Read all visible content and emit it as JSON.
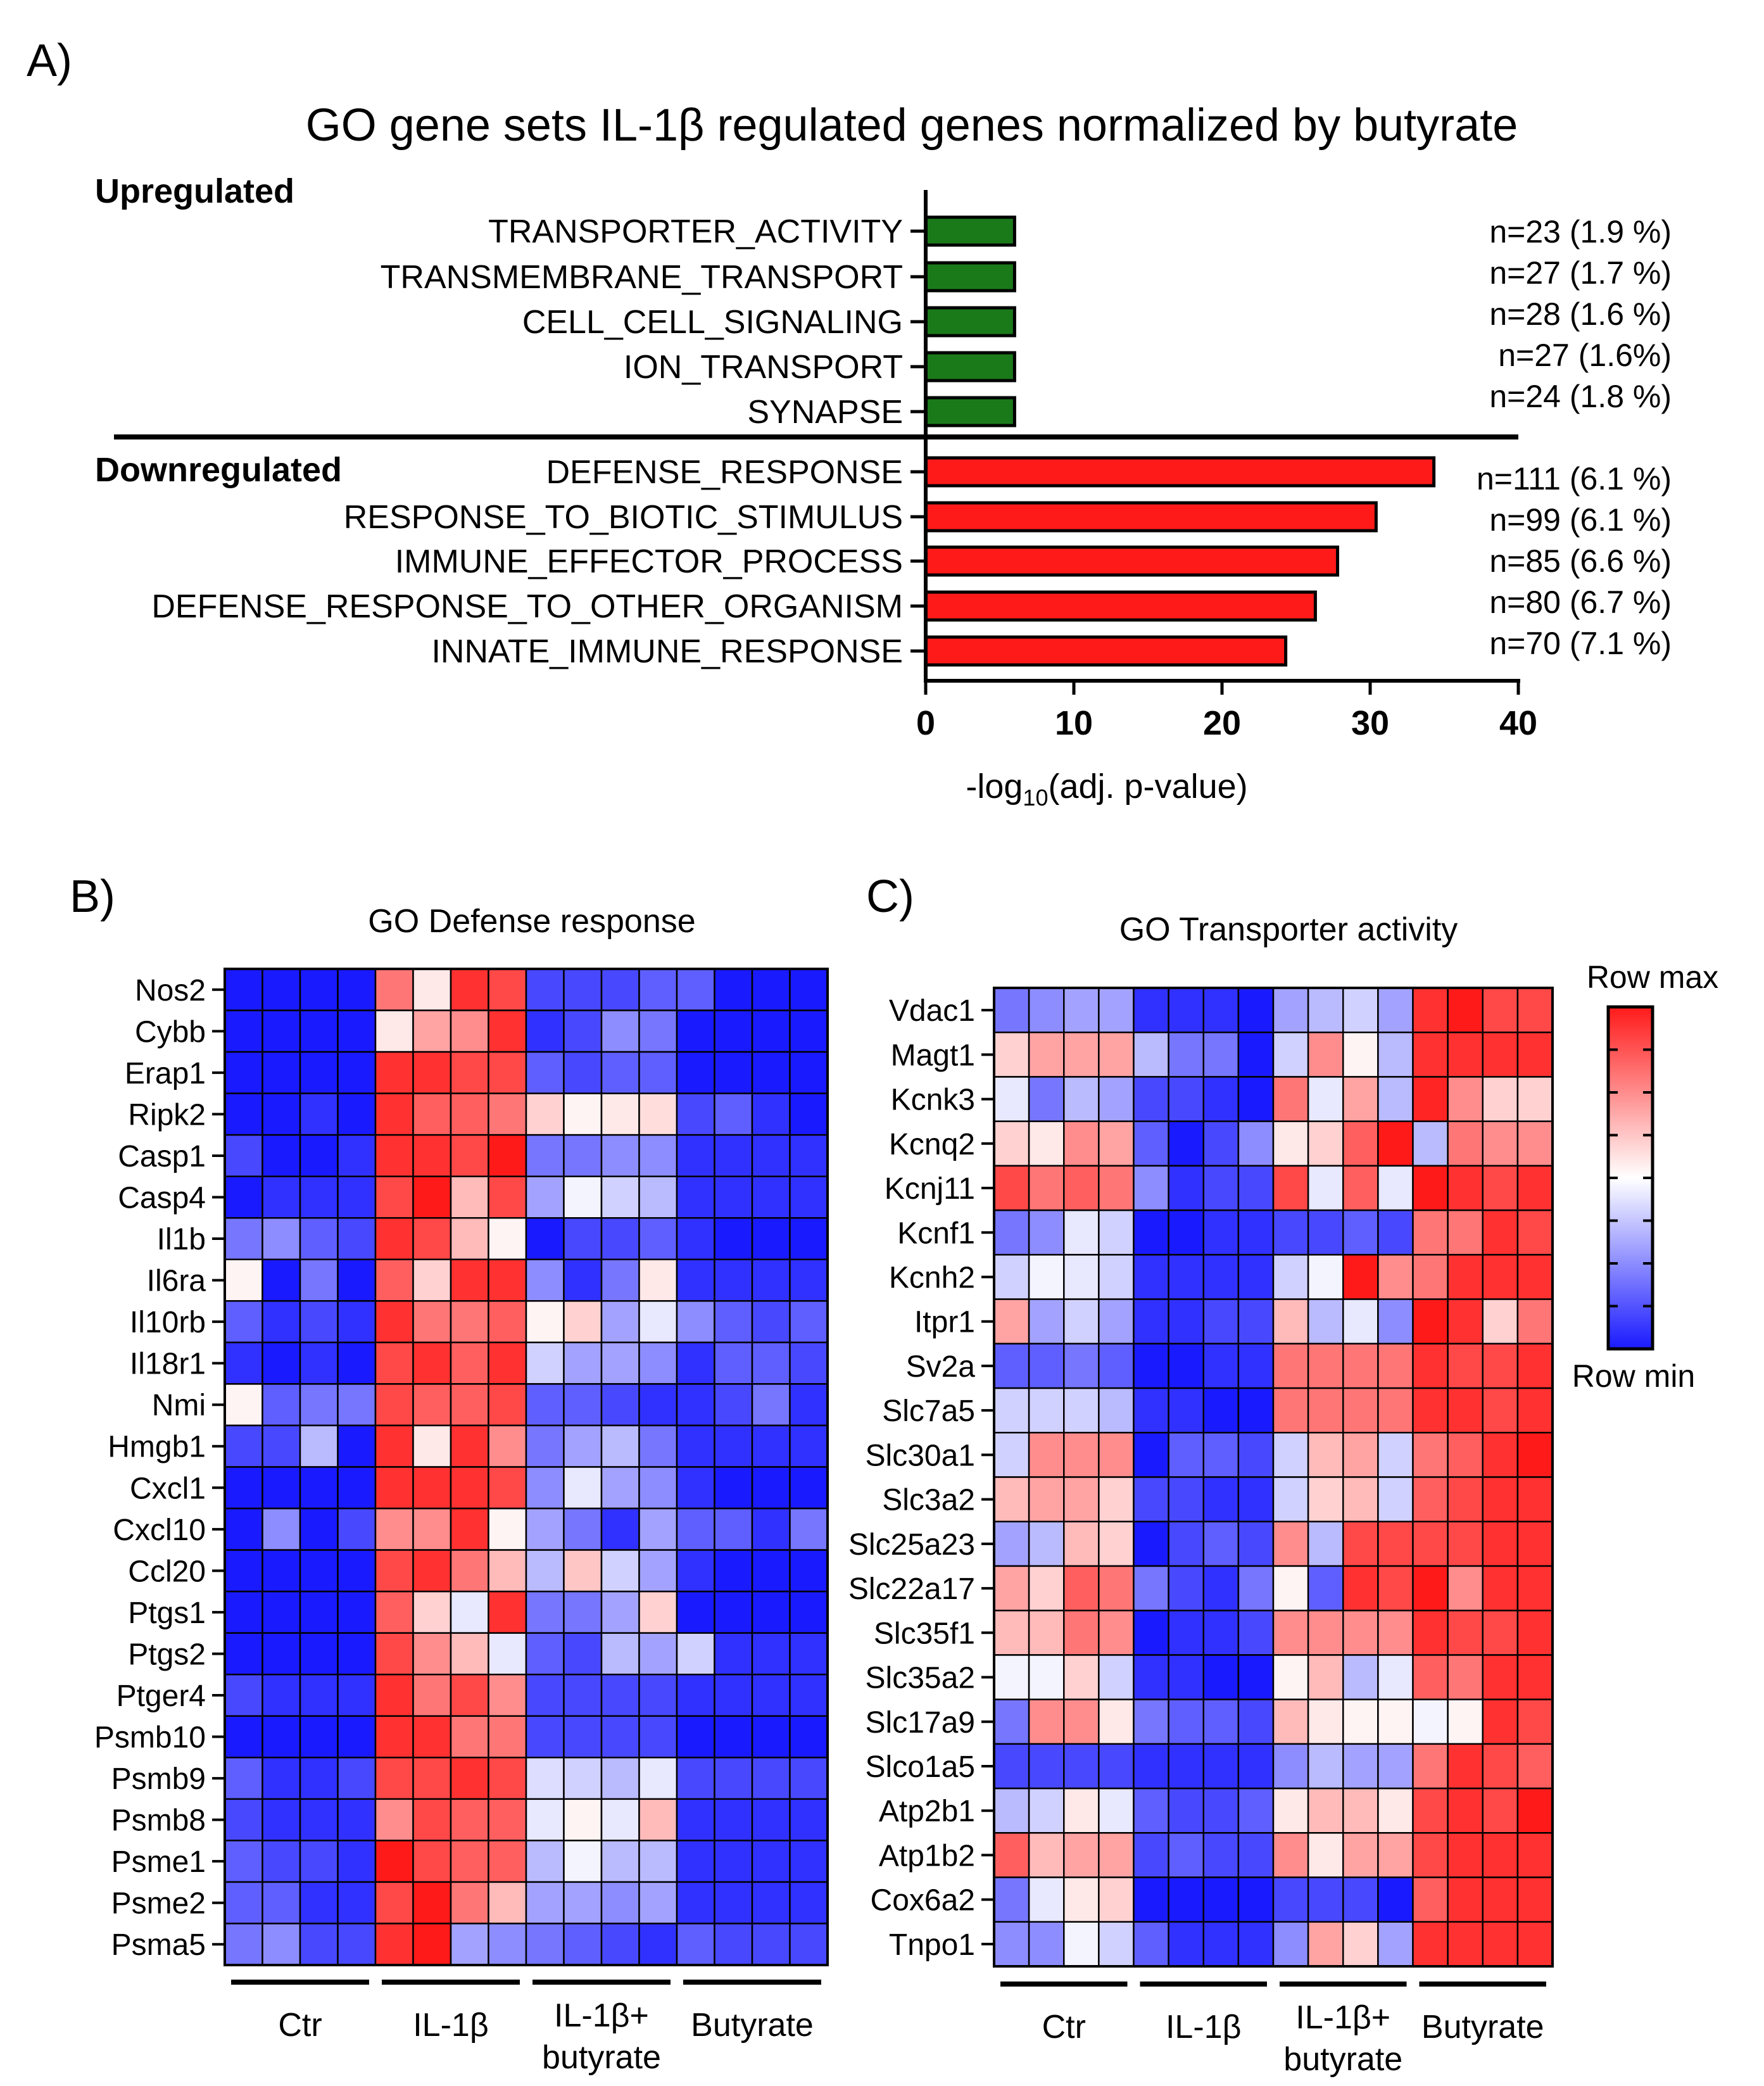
{
  "colors": {
    "up_bar": "#1a7a1a",
    "down_bar": "#ff1a1a",
    "row_max": "#ff1a1a",
    "row_mid": "#ffffff",
    "row_min": "#1a1aff"
  },
  "panel_labels": {
    "a": "A)",
    "b": "B)",
    "c": "C)"
  },
  "chart_data": [
    {
      "type": "bar",
      "orientation": "horizontal",
      "title": "GO gene sets IL-1β regulated genes normalized by butyrate",
      "group_labels": {
        "up": "Upregulated",
        "down": "Downregulated"
      },
      "xlabel_prefix": "-log",
      "xlabel_sub": "10",
      "xlabel_suffix": "(adj. p-value)",
      "xlim": [
        0,
        40
      ],
      "xticks": [
        "0",
        "10",
        "20",
        "30",
        "40"
      ],
      "series": [
        {
          "name": "Upregulated",
          "categories": [
            "TRANSPORTER_ACTIVITY",
            "TRANSMEMBRANE_TRANSPORT",
            "CELL_CELL_SIGNALING",
            "ION_TRANSPORT",
            "SYNAPSE"
          ],
          "values": [
            6.0,
            6.0,
            6.0,
            6.0,
            6.0
          ],
          "annotations": [
            "n=23 (1.9 %)",
            "n=27 (1.7 %)",
            "n=28 (1.6 %)",
            "n=27 (1.6%)",
            "n=24 (1.8 %)"
          ]
        },
        {
          "name": "Downregulated",
          "categories": [
            "DEFENSE_RESPONSE",
            "RESPONSE_TO_BIOTIC_STIMULUS",
            "IMMUNE_EFFECTOR_PROCESS",
            "DEFENSE_RESPONSE_TO_OTHER_ORGANISM",
            "INNATE_IMMUNE_RESPONSE"
          ],
          "values": [
            34.3,
            30.4,
            27.8,
            26.3,
            24.3
          ],
          "annotations": [
            "n=111  (6.1 %)",
            "n=99 (6.1 %)",
            "n=85 (6.6 %)",
            "n=80 (6.7 %)",
            "n=70 (7.1 %)"
          ]
        }
      ]
    },
    {
      "type": "heatmap",
      "title": "GO Defense response",
      "groups": [
        "Ctr",
        "IL-1β",
        "IL-1β+",
        "Butyrate"
      ],
      "group_sublabels": [
        "",
        "",
        "butyrate",
        ""
      ],
      "columns_per_group": 4,
      "scale": "row z-score, -1 = row min (blue), 1 = row max (red)",
      "rows": [
        "Nos2",
        "Cybb",
        "Erap1",
        "Ripk2",
        "Casp1",
        "Casp4",
        "Il1b",
        "Il6ra",
        "Il10rb",
        "Il18r1",
        "Nmi",
        "Hmgb1",
        "Cxcl1",
        "Cxcl10",
        "Ccl20",
        "Ptgs1",
        "Ptgs2",
        "Ptger4",
        "Psmb10",
        "Psmb9",
        "Psmb8",
        "Psme1",
        "Psme2",
        "Psma5"
      ],
      "values": [
        [
          -1,
          -1,
          -1,
          -1,
          0.6,
          0.1,
          0.9,
          0.8,
          -0.8,
          -0.8,
          -0.8,
          -0.7,
          -0.7,
          -1,
          -1,
          -1
        ],
        [
          -1,
          -1,
          -1,
          -1,
          0.1,
          0.4,
          0.5,
          0.9,
          -0.9,
          -0.8,
          -0.5,
          -0.6,
          -1,
          -1,
          -1,
          -1
        ],
        [
          -1,
          -1,
          -1,
          -1,
          0.9,
          0.9,
          0.8,
          0.8,
          -0.7,
          -0.8,
          -0.7,
          -0.7,
          -1,
          -1,
          -1,
          -1
        ],
        [
          -1,
          -1,
          -0.9,
          -1,
          0.9,
          0.7,
          0.7,
          0.6,
          0.2,
          0.05,
          0.1,
          0.15,
          -0.8,
          -0.7,
          -0.9,
          -1
        ],
        [
          -0.8,
          -1,
          -1,
          -0.9,
          0.9,
          0.9,
          0.8,
          1,
          -0.6,
          -0.6,
          -0.5,
          -0.5,
          -0.9,
          -0.9,
          -0.9,
          -0.9
        ],
        [
          -1,
          -0.9,
          -0.9,
          -0.9,
          0.8,
          1,
          0.3,
          0.8,
          -0.4,
          -0.05,
          -0.2,
          -0.3,
          -0.9,
          -0.9,
          -0.9,
          -0.9
        ],
        [
          -0.6,
          -0.5,
          -0.7,
          -0.8,
          0.9,
          0.8,
          0.3,
          0.05,
          -1,
          -0.8,
          -0.8,
          -0.7,
          -0.9,
          -1,
          -1,
          -1
        ],
        [
          0.05,
          -1,
          -0.6,
          -1,
          0.7,
          0.2,
          0.9,
          0.9,
          -0.5,
          -0.9,
          -0.6,
          0.1,
          -0.9,
          -0.9,
          -0.9,
          -0.9
        ],
        [
          -0.7,
          -0.9,
          -0.8,
          -0.9,
          0.9,
          0.6,
          0.6,
          0.7,
          0.05,
          0.2,
          -0.4,
          -0.1,
          -0.5,
          -0.7,
          -0.8,
          -0.7
        ],
        [
          -0.9,
          -1,
          -0.9,
          -1,
          0.8,
          0.9,
          0.7,
          0.9,
          -0.2,
          -0.4,
          -0.4,
          -0.5,
          -0.9,
          -0.7,
          -0.7,
          -0.8
        ],
        [
          0.05,
          -0.7,
          -0.6,
          -0.6,
          0.8,
          0.7,
          0.7,
          0.8,
          -0.7,
          -0.7,
          -0.8,
          -0.9,
          -0.9,
          -0.8,
          -0.6,
          -0.9
        ],
        [
          -0.8,
          -0.8,
          -0.3,
          -1,
          0.9,
          0.1,
          0.9,
          0.5,
          -0.6,
          -0.4,
          -0.3,
          -0.6,
          -0.9,
          -0.9,
          -0.9,
          -0.9
        ],
        [
          -1,
          -1,
          -1,
          -1,
          0.9,
          0.9,
          0.9,
          0.8,
          -0.5,
          -0.1,
          -0.4,
          -0.5,
          -0.9,
          -1,
          -1,
          -1
        ],
        [
          -1,
          -0.5,
          -1,
          -0.8,
          0.5,
          0.5,
          0.9,
          0.05,
          -0.4,
          -0.6,
          -0.9,
          -0.4,
          -0.7,
          -0.7,
          -0.9,
          -0.6
        ],
        [
          -1,
          -1,
          -1,
          -1,
          0.8,
          0.9,
          0.6,
          0.3,
          -0.3,
          0.25,
          -0.2,
          -0.4,
          -0.9,
          -1,
          -1,
          -1
        ],
        [
          -1,
          -1,
          -1,
          -1,
          0.7,
          0.2,
          -0.1,
          0.9,
          -0.6,
          -0.6,
          -0.4,
          0.2,
          -1,
          -1,
          -1,
          -1
        ],
        [
          -1,
          -1,
          -1,
          -1,
          0.8,
          0.5,
          0.3,
          -0.1,
          -0.7,
          -0.8,
          -0.3,
          -0.4,
          -0.2,
          -0.9,
          -0.9,
          -0.9
        ],
        [
          -0.8,
          -0.9,
          -0.9,
          -0.9,
          0.9,
          0.6,
          0.8,
          0.5,
          -0.8,
          -0.8,
          -0.8,
          -0.8,
          -0.9,
          -0.9,
          -0.9,
          -0.9
        ],
        [
          -1,
          -1,
          -1,
          -1,
          0.9,
          0.9,
          0.6,
          0.6,
          -0.8,
          -0.8,
          -0.8,
          -0.8,
          -1,
          -1,
          -1,
          -1
        ],
        [
          -0.7,
          -0.9,
          -0.9,
          -0.8,
          0.8,
          0.8,
          0.9,
          0.8,
          -0.15,
          -0.2,
          -0.3,
          -0.1,
          -0.8,
          -0.8,
          -0.8,
          -0.8
        ],
        [
          -0.8,
          -0.9,
          -0.9,
          -0.9,
          0.5,
          0.8,
          0.7,
          0.7,
          -0.1,
          0.05,
          -0.1,
          0.3,
          -0.9,
          -0.9,
          -0.9,
          -0.9
        ],
        [
          -0.7,
          -0.8,
          -0.8,
          -0.9,
          1,
          0.8,
          0.7,
          0.7,
          -0.3,
          -0.05,
          -0.3,
          -0.3,
          -0.9,
          -0.9,
          -0.9,
          -0.9
        ],
        [
          -0.7,
          -0.7,
          -0.9,
          -0.9,
          0.8,
          1,
          0.6,
          0.3,
          -0.4,
          -0.4,
          -0.5,
          -0.4,
          -0.9,
          -0.9,
          -0.9,
          -0.9
        ],
        [
          -0.6,
          -0.5,
          -0.8,
          -0.8,
          0.9,
          1,
          -0.4,
          -0.5,
          -0.6,
          -0.7,
          -0.8,
          -0.9,
          -0.7,
          -0.8,
          -0.8,
          -0.8
        ]
      ]
    },
    {
      "type": "heatmap",
      "title": "GO Transporter activity",
      "groups": [
        "Ctr",
        "IL-1β",
        "IL-1β+",
        "Butyrate"
      ],
      "group_sublabels": [
        "",
        "",
        "butyrate",
        ""
      ],
      "columns_per_group": 4,
      "legend": {
        "max_label": "Row max",
        "min_label": "Row min"
      },
      "rows": [
        "Vdac1",
        "Magt1",
        "Kcnk3",
        "Kcnq2",
        "Kcnj11",
        "Kcnf1",
        "Kcnh2",
        "Itpr1",
        "Sv2a",
        "Slc7a5",
        "Slc30a1",
        "Slc3a2",
        "Slc25a23",
        "Slc22a17",
        "Slc35f1",
        "Slc35a2",
        "Slc17a9",
        "Slco1a5",
        "Atp2b1",
        "Atp1b2",
        "Cox6a2",
        "Tnpo1"
      ],
      "values": [
        [
          -0.6,
          -0.5,
          -0.4,
          -0.4,
          -0.9,
          -0.9,
          -0.9,
          -1,
          -0.4,
          -0.3,
          -0.2,
          -0.4,
          0.9,
          1,
          0.8,
          0.8
        ],
        [
          0.2,
          0.4,
          0.4,
          0.4,
          -0.3,
          -0.6,
          -0.6,
          -1,
          -0.2,
          0.5,
          0.05,
          -0.3,
          0.9,
          0.9,
          0.9,
          0.9
        ],
        [
          -0.1,
          -0.6,
          -0.3,
          -0.4,
          -0.8,
          -0.8,
          -0.9,
          -1,
          0.6,
          -0.1,
          0.4,
          -0.3,
          0.95,
          0.5,
          0.2,
          0.2
        ],
        [
          0.2,
          0.1,
          0.5,
          0.4,
          -0.7,
          -1,
          -0.8,
          -0.5,
          0.1,
          0.2,
          0.7,
          1,
          -0.3,
          0.6,
          0.5,
          0.5
        ],
        [
          0.8,
          0.6,
          0.7,
          0.6,
          -0.5,
          -0.9,
          -0.8,
          -0.8,
          0.8,
          -0.1,
          0.7,
          -0.1,
          1,
          0.9,
          0.8,
          0.9
        ],
        [
          -0.6,
          -0.5,
          -0.1,
          -0.2,
          -1,
          -1,
          -0.9,
          -0.9,
          -0.8,
          -0.8,
          -0.7,
          -0.8,
          0.6,
          0.6,
          0.9,
          0.8
        ],
        [
          -0.2,
          -0.05,
          -0.1,
          -0.2,
          -0.9,
          -0.9,
          -0.9,
          -0.9,
          -0.2,
          -0.05,
          1,
          0.5,
          0.6,
          0.9,
          0.9,
          0.9
        ],
        [
          0.4,
          -0.4,
          -0.2,
          -0.4,
          -0.9,
          -0.9,
          -0.8,
          -0.8,
          0.3,
          -0.3,
          -0.1,
          -0.5,
          1,
          0.9,
          0.2,
          0.6
        ],
        [
          -0.7,
          -0.7,
          -0.6,
          -0.7,
          -1,
          -1,
          -0.9,
          -0.9,
          0.6,
          0.6,
          0.6,
          0.6,
          0.9,
          0.8,
          0.8,
          0.9
        ],
        [
          -0.2,
          -0.2,
          -0.2,
          -0.3,
          -0.9,
          -0.9,
          -1,
          -1,
          0.6,
          0.6,
          0.6,
          0.6,
          0.9,
          0.9,
          0.8,
          0.9
        ],
        [
          -0.2,
          0.5,
          0.5,
          0.5,
          -1,
          -0.7,
          -0.7,
          -0.8,
          -0.2,
          0.3,
          0.4,
          -0.2,
          0.6,
          0.7,
          0.9,
          1
        ],
        [
          0.3,
          0.4,
          0.4,
          0.2,
          -0.8,
          -0.8,
          -0.9,
          -0.9,
          -0.2,
          0.2,
          0.3,
          -0.2,
          0.7,
          0.8,
          0.9,
          0.9
        ],
        [
          -0.4,
          -0.3,
          0.3,
          0.2,
          -1,
          -0.8,
          -0.7,
          -0.8,
          0.5,
          -0.3,
          0.8,
          0.8,
          0.8,
          0.8,
          0.9,
          0.9
        ],
        [
          0.4,
          0.2,
          0.7,
          0.6,
          -0.6,
          -0.8,
          -0.9,
          -0.6,
          0.05,
          -0.7,
          0.9,
          0.8,
          1,
          0.5,
          0.9,
          0.9
        ],
        [
          0.3,
          0.3,
          0.6,
          0.5,
          -1,
          -0.9,
          -0.9,
          -0.8,
          0.5,
          0.5,
          0.5,
          0.5,
          0.9,
          0.8,
          0.8,
          0.9
        ],
        [
          -0.05,
          -0.05,
          0.2,
          -0.2,
          -0.9,
          -0.9,
          -1,
          -1,
          0.05,
          0.3,
          -0.3,
          -0.1,
          0.7,
          0.6,
          0.9,
          0.9
        ],
        [
          -0.6,
          0.5,
          0.5,
          0.1,
          -0.6,
          -0.7,
          -0.7,
          -0.8,
          0.3,
          0.1,
          0.05,
          0.05,
          -0.05,
          0.05,
          0.9,
          0.8
        ],
        [
          -0.8,
          -0.8,
          -0.8,
          -0.8,
          -0.9,
          -0.9,
          -0.9,
          -0.9,
          -0.5,
          -0.3,
          -0.4,
          -0.4,
          0.6,
          0.9,
          0.8,
          0.7
        ],
        [
          -0.3,
          -0.2,
          0.1,
          -0.1,
          -0.7,
          -0.8,
          -0.8,
          -0.7,
          0.1,
          0.3,
          0.3,
          0.1,
          0.8,
          0.9,
          0.8,
          1
        ],
        [
          0.7,
          0.3,
          0.4,
          0.4,
          -0.8,
          -0.7,
          -0.8,
          -0.8,
          0.5,
          0.1,
          0.4,
          0.4,
          0.8,
          0.9,
          0.9,
          0.9
        ],
        [
          -0.6,
          -0.1,
          0.1,
          0.2,
          -1,
          -1,
          -1,
          -1,
          -0.8,
          -0.8,
          -0.8,
          -1,
          0.7,
          0.9,
          0.9,
          0.9
        ],
        [
          -0.5,
          -0.5,
          -0.05,
          -0.2,
          -0.7,
          -0.9,
          -0.9,
          -0.9,
          -0.5,
          0.4,
          0.2,
          -0.4,
          0.9,
          0.9,
          0.9,
          0.9
        ]
      ]
    }
  ]
}
